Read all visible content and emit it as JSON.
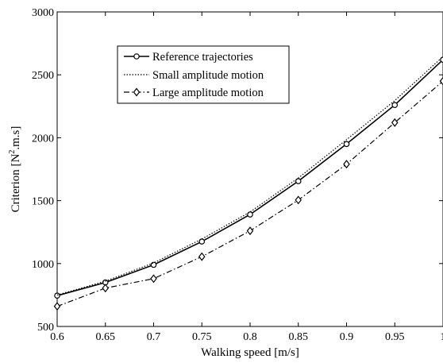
{
  "chart_data": {
    "type": "line",
    "title": "",
    "xlabel": "Walking speed  [m/s]",
    "ylabel_prefix": "Criterion [N",
    "ylabel_sup": "2",
    "ylabel_suffix": ".m.s]",
    "xlim": [
      0.6,
      1.0
    ],
    "ylim": [
      500,
      3000
    ],
    "x_ticks": [
      0.6,
      0.65,
      0.7,
      0.75,
      0.8,
      0.85,
      0.9,
      0.95,
      1.0
    ],
    "x_tick_labels": [
      "0.6",
      "0.65",
      "0.7",
      "0.75",
      "0.8",
      "0.85",
      "0.9",
      "0.95",
      "1"
    ],
    "y_ticks": [
      500,
      1000,
      1500,
      2000,
      2500,
      3000
    ],
    "y_tick_labels": [
      "500",
      "1000",
      "1500",
      "2000",
      "2500",
      "3000"
    ],
    "grid": false,
    "legend_position": "top-left",
    "x": [
      0.6,
      0.65,
      0.7,
      0.75,
      0.8,
      0.85,
      0.9,
      0.95,
      1.0
    ],
    "series": [
      {
        "name": "Reference trajectories",
        "values": [
          745,
          850,
          990,
          1175,
          1390,
          1655,
          1950,
          2260,
          2620
        ],
        "line_style": "solid",
        "marker": "circle",
        "color": "#000000"
      },
      {
        "name": "Small amplitude motion",
        "values": [
          750,
          860,
          1005,
          1195,
          1410,
          1680,
          1985,
          2295,
          2645
        ],
        "line_style": "dotted",
        "marker": "none",
        "color": "#000000"
      },
      {
        "name": "Large amplitude motion",
        "values": [
          660,
          805,
          880,
          1055,
          1260,
          1505,
          1790,
          2120,
          2450
        ],
        "line_style": "dashdot",
        "marker": "diamond",
        "color": "#000000"
      }
    ]
  }
}
